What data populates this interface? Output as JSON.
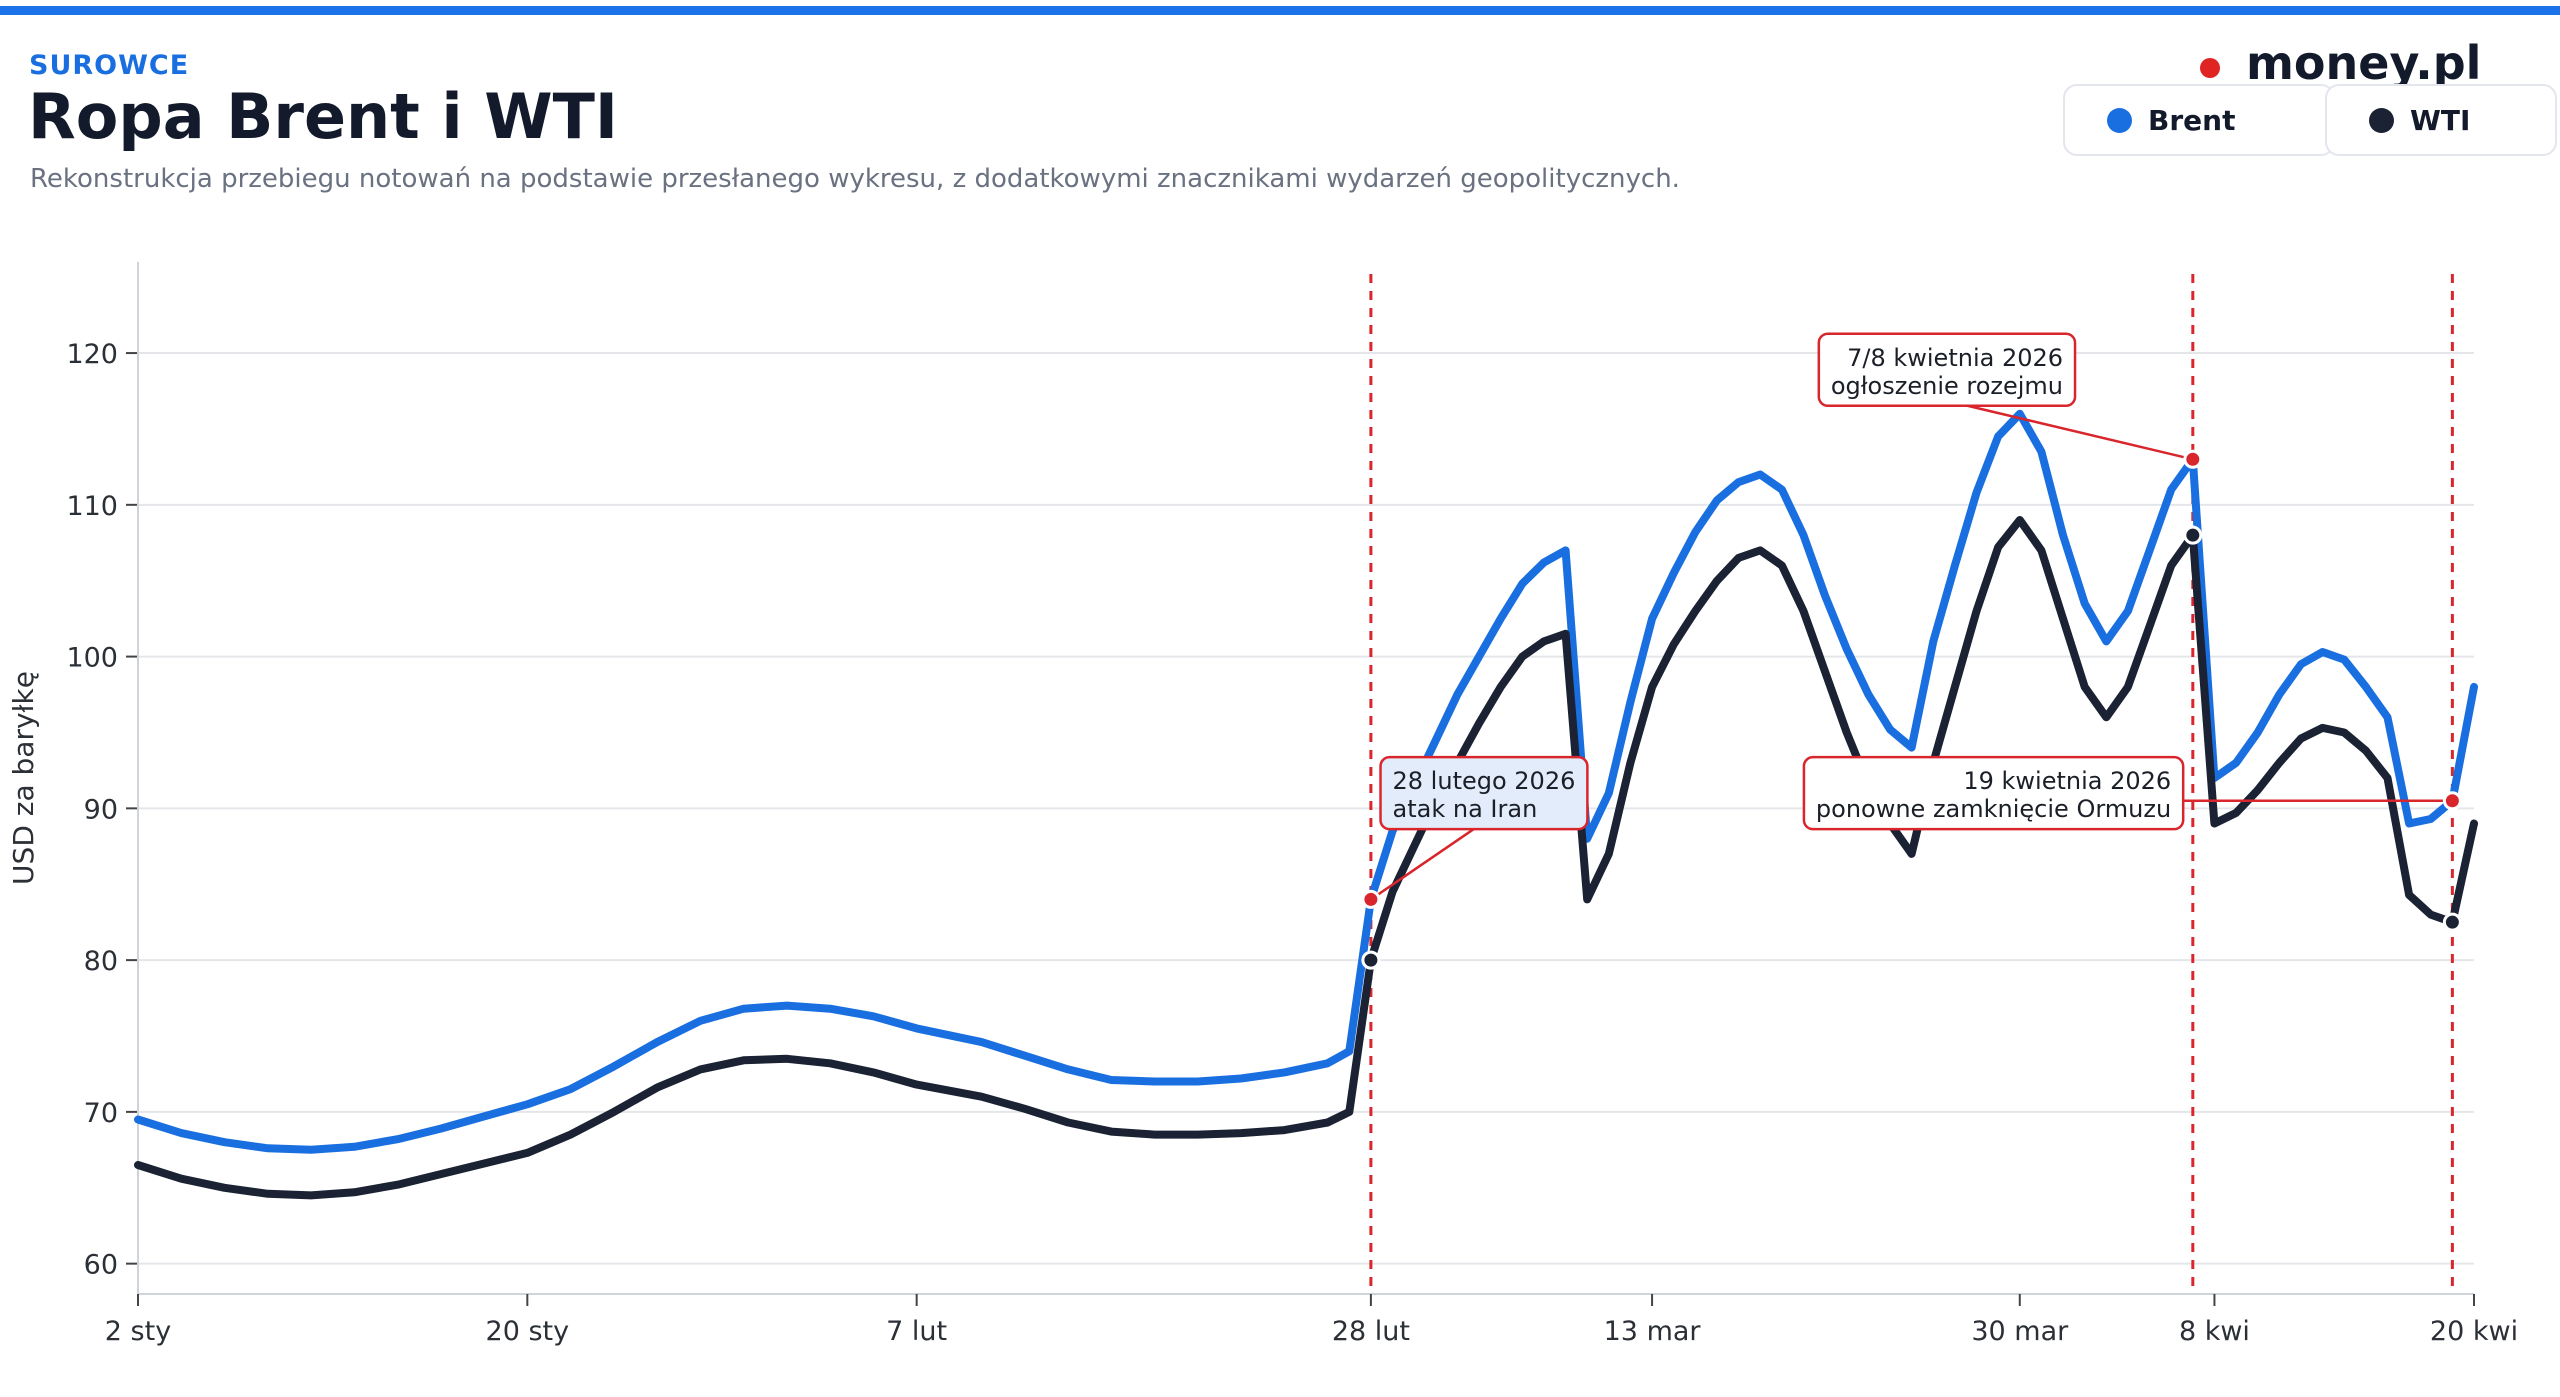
{
  "header": {
    "kicker": "SUROWCE",
    "title": "Ropa Brent i WTI",
    "subtitle": "Rekonstrukcja przebiegu notowań na podstawie przesłanego wykresu, z dodatkowymi znacznikami wydarzeń geopolitycznych."
  },
  "brand": {
    "name": "money.pl",
    "dot_color": "#e02424"
  },
  "legend": [
    {
      "label": "Brent",
      "color": "#1a6fe0"
    },
    {
      "label": "WTI",
      "color": "#1a2233"
    }
  ],
  "chart_data": {
    "type": "line",
    "xlabel": "",
    "ylabel": "USD za baryłkę",
    "ylim": [
      58,
      126
    ],
    "yticks": [
      60,
      70,
      80,
      90,
      100,
      110,
      120
    ],
    "xlim": [
      "2026-01-02",
      "2026-04-20"
    ],
    "xticks": [
      {
        "date": "2026-01-02",
        "label": "2 sty"
      },
      {
        "date": "2026-01-20",
        "label": "20 sty"
      },
      {
        "date": "2026-02-07",
        "label": "7 lut"
      },
      {
        "date": "2026-02-28",
        "label": "28 lut"
      },
      {
        "date": "2026-03-13",
        "label": "13 mar"
      },
      {
        "date": "2026-03-30",
        "label": "30 mar"
      },
      {
        "date": "2026-04-08",
        "label": "8 kwi"
      },
      {
        "date": "2026-04-20",
        "label": "20 kwi"
      }
    ],
    "grid": true,
    "series": [
      {
        "name": "Brent",
        "color": "#1a6fe0",
        "points": [
          [
            "2026-01-02",
            69.5
          ],
          [
            "2026-01-04",
            68.6
          ],
          [
            "2026-01-06",
            68.0
          ],
          [
            "2026-01-08",
            67.6
          ],
          [
            "2026-01-10",
            67.5
          ],
          [
            "2026-01-12",
            67.7
          ],
          [
            "2026-01-14",
            68.2
          ],
          [
            "2026-01-16",
            68.9
          ],
          [
            "2026-01-18",
            69.7
          ],
          [
            "2026-01-20",
            70.5
          ],
          [
            "2026-01-22",
            71.5
          ],
          [
            "2026-01-24",
            73.0
          ],
          [
            "2026-01-26",
            74.6
          ],
          [
            "2026-01-28",
            76.0
          ],
          [
            "2026-01-30",
            76.8
          ],
          [
            "2026-02-01",
            77.0
          ],
          [
            "2026-02-03",
            76.8
          ],
          [
            "2026-02-05",
            76.3
          ],
          [
            "2026-02-07",
            75.5
          ],
          [
            "2026-02-10",
            74.6
          ],
          [
            "2026-02-12",
            73.7
          ],
          [
            "2026-02-14",
            72.8
          ],
          [
            "2026-02-16",
            72.1
          ],
          [
            "2026-02-18",
            72.0
          ],
          [
            "2026-02-20",
            72.0
          ],
          [
            "2026-02-22",
            72.2
          ],
          [
            "2026-02-24",
            72.6
          ],
          [
            "2026-02-26",
            73.2
          ],
          [
            "2026-02-27",
            74.0
          ],
          [
            "2026-02-28",
            84.0
          ],
          [
            "2026-03-01",
            88.5
          ],
          [
            "2026-03-02",
            91.5
          ],
          [
            "2026-03-03",
            94.5
          ],
          [
            "2026-03-04",
            97.5
          ],
          [
            "2026-03-05",
            100.0
          ],
          [
            "2026-03-06",
            102.5
          ],
          [
            "2026-03-07",
            104.8
          ],
          [
            "2026-03-08",
            106.2
          ],
          [
            "2026-03-09",
            107.0
          ],
          [
            "2026-03-10",
            88.0
          ],
          [
            "2026-03-11",
            91.0
          ],
          [
            "2026-03-12",
            97.0
          ],
          [
            "2026-03-13",
            102.5
          ],
          [
            "2026-03-14",
            105.5
          ],
          [
            "2026-03-15",
            108.2
          ],
          [
            "2026-03-16",
            110.3
          ],
          [
            "2026-03-17",
            111.5
          ],
          [
            "2026-03-18",
            112.0
          ],
          [
            "2026-03-19",
            111.0
          ],
          [
            "2026-03-20",
            108.0
          ],
          [
            "2026-03-21",
            104.0
          ],
          [
            "2026-03-22",
            100.5
          ],
          [
            "2026-03-23",
            97.5
          ],
          [
            "2026-03-24",
            95.2
          ],
          [
            "2026-03-25",
            94.0
          ],
          [
            "2026-03-26",
            101.0
          ],
          [
            "2026-03-27",
            106.0
          ],
          [
            "2026-03-28",
            110.8
          ],
          [
            "2026-03-29",
            114.5
          ],
          [
            "2026-03-30",
            116.0
          ],
          [
            "2026-03-31",
            113.5
          ],
          [
            "2026-04-01",
            108.0
          ],
          [
            "2026-04-02",
            103.5
          ],
          [
            "2026-04-03",
            101.0
          ],
          [
            "2026-04-04",
            103.0
          ],
          [
            "2026-04-05",
            107.0
          ],
          [
            "2026-04-06",
            111.0
          ],
          [
            "2026-04-07",
            113.0
          ],
          [
            "2026-04-08",
            92.0
          ],
          [
            "2026-04-09",
            93.0
          ],
          [
            "2026-04-10",
            95.0
          ],
          [
            "2026-04-11",
            97.5
          ],
          [
            "2026-04-12",
            99.5
          ],
          [
            "2026-04-13",
            100.3
          ],
          [
            "2026-04-14",
            99.8
          ],
          [
            "2026-04-15",
            98.0
          ],
          [
            "2026-04-16",
            96.0
          ],
          [
            "2026-04-17",
            89.0
          ],
          [
            "2026-04-18",
            89.3
          ],
          [
            "2026-04-19",
            90.5
          ],
          [
            "2026-04-20",
            98.0
          ]
        ]
      },
      {
        "name": "WTI",
        "color": "#1a2233",
        "points": [
          [
            "2026-01-02",
            66.5
          ],
          [
            "2026-01-04",
            65.6
          ],
          [
            "2026-01-06",
            65.0
          ],
          [
            "2026-01-08",
            64.6
          ],
          [
            "2026-01-10",
            64.5
          ],
          [
            "2026-01-12",
            64.7
          ],
          [
            "2026-01-14",
            65.2
          ],
          [
            "2026-01-16",
            65.9
          ],
          [
            "2026-01-18",
            66.6
          ],
          [
            "2026-01-20",
            67.3
          ],
          [
            "2026-01-22",
            68.5
          ],
          [
            "2026-01-24",
            70.0
          ],
          [
            "2026-01-26",
            71.6
          ],
          [
            "2026-01-28",
            72.8
          ],
          [
            "2026-01-30",
            73.4
          ],
          [
            "2026-02-01",
            73.5
          ],
          [
            "2026-02-03",
            73.2
          ],
          [
            "2026-02-05",
            72.6
          ],
          [
            "2026-02-07",
            71.8
          ],
          [
            "2026-02-10",
            71.0
          ],
          [
            "2026-02-12",
            70.2
          ],
          [
            "2026-02-14",
            69.3
          ],
          [
            "2026-02-16",
            68.7
          ],
          [
            "2026-02-18",
            68.5
          ],
          [
            "2026-02-20",
            68.5
          ],
          [
            "2026-02-22",
            68.6
          ],
          [
            "2026-02-24",
            68.8
          ],
          [
            "2026-02-26",
            69.3
          ],
          [
            "2026-02-27",
            70.0
          ],
          [
            "2026-02-28",
            80.0
          ],
          [
            "2026-03-01",
            84.5
          ],
          [
            "2026-03-02",
            87.5
          ],
          [
            "2026-03-03",
            90.5
          ],
          [
            "2026-03-04",
            93.0
          ],
          [
            "2026-03-05",
            95.6
          ],
          [
            "2026-03-06",
            98.0
          ],
          [
            "2026-03-07",
            100.0
          ],
          [
            "2026-03-08",
            101.0
          ],
          [
            "2026-03-09",
            101.5
          ],
          [
            "2026-03-10",
            84.0
          ],
          [
            "2026-03-11",
            87.0
          ],
          [
            "2026-03-12",
            93.0
          ],
          [
            "2026-03-13",
            98.0
          ],
          [
            "2026-03-14",
            100.8
          ],
          [
            "2026-03-15",
            103.0
          ],
          [
            "2026-03-16",
            105.0
          ],
          [
            "2026-03-17",
            106.5
          ],
          [
            "2026-03-18",
            107.0
          ],
          [
            "2026-03-19",
            106.0
          ],
          [
            "2026-03-20",
            103.0
          ],
          [
            "2026-03-21",
            99.0
          ],
          [
            "2026-03-22",
            95.0
          ],
          [
            "2026-03-23",
            91.5
          ],
          [
            "2026-03-24",
            89.0
          ],
          [
            "2026-03-25",
            87.0
          ],
          [
            "2026-03-26",
            93.0
          ],
          [
            "2026-03-27",
            98.0
          ],
          [
            "2026-03-28",
            103.0
          ],
          [
            "2026-03-29",
            107.2
          ],
          [
            "2026-03-30",
            109.0
          ],
          [
            "2026-03-31",
            107.0
          ],
          [
            "2026-04-01",
            102.5
          ],
          [
            "2026-04-02",
            98.0
          ],
          [
            "2026-04-03",
            96.0
          ],
          [
            "2026-04-04",
            98.0
          ],
          [
            "2026-04-05",
            102.0
          ],
          [
            "2026-04-06",
            106.0
          ],
          [
            "2026-04-07",
            108.0
          ],
          [
            "2026-04-08",
            89.0
          ],
          [
            "2026-04-09",
            89.7
          ],
          [
            "2026-04-10",
            91.2
          ],
          [
            "2026-04-11",
            93.0
          ],
          [
            "2026-04-12",
            94.6
          ],
          [
            "2026-04-13",
            95.3
          ],
          [
            "2026-04-14",
            95.0
          ],
          [
            "2026-04-15",
            93.8
          ],
          [
            "2026-04-16",
            92.0
          ],
          [
            "2026-04-17",
            84.3
          ],
          [
            "2026-04-18",
            83.0
          ],
          [
            "2026-04-19",
            82.5
          ],
          [
            "2026-04-20",
            89.0
          ]
        ]
      }
    ],
    "events": [
      {
        "date": "2026-02-28",
        "brent": 84.0,
        "wti": 80.0,
        "line1": "28 lutego 2026",
        "line2": "atak na Iran",
        "label_anchor": "start",
        "label_date": "2026-03-01",
        "label_value": 91.0,
        "label_bg": "#e3ecfa"
      },
      {
        "date": "2026-04-07",
        "brent": 113.0,
        "wti": 108.0,
        "line1": "7/8 kwietnia 2026",
        "line2": "ogłoszenie rozejmu",
        "label_anchor": "end",
        "label_date": "2026-04-01",
        "label_value": 118.9,
        "label_bg": "#ffffff"
      },
      {
        "date": "2026-04-19",
        "brent": 90.5,
        "wti": 82.5,
        "line1": "19 kwietnia 2026",
        "line2": "ponowne zamknięcie Ormuzu",
        "label_anchor": "end",
        "label_date": "2026-04-06",
        "label_value": 91.0,
        "label_bg": "#ffffff"
      }
    ],
    "event_color": "#d9262d"
  }
}
